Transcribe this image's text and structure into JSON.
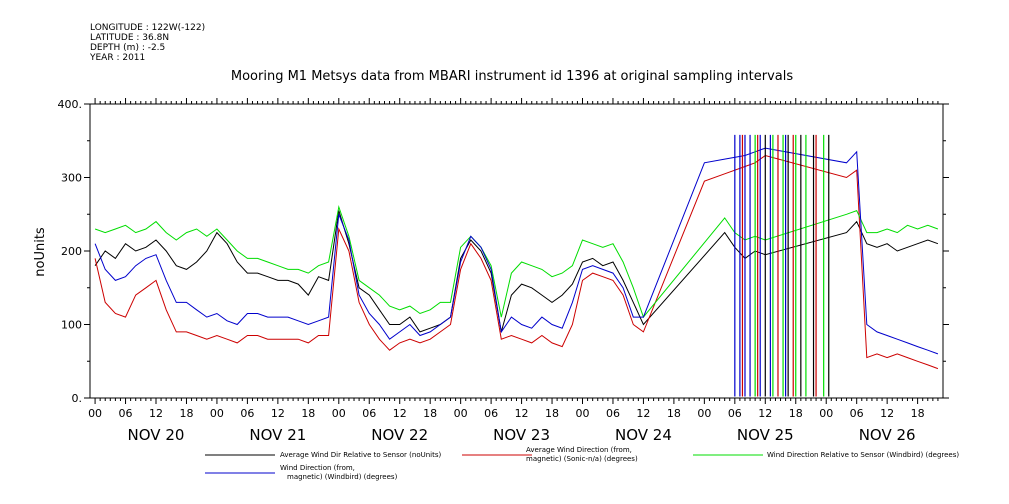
{
  "header": {
    "longitude": "LONGITUDE : 122W(-122)",
    "latitude": "LATITUDE : 36.8N",
    "depth": "DEPTH (m) : -2.5",
    "year": "YEAR : 2011"
  },
  "chart_data": {
    "type": "line",
    "title": "Mooring M1 Metsys data from MBARI instrument id 1396 at original sampling intervals",
    "ylabel": "noUnits",
    "xlabel": "",
    "ylim": [
      0,
      400
    ],
    "yticks": [
      0,
      100,
      200,
      300,
      400
    ],
    "ytick_labels": [
      "0.",
      "100",
      "200",
      "300",
      "400."
    ],
    "x_hour_labels": [
      "00",
      "06",
      "12",
      "18",
      "00",
      "06",
      "12",
      "18",
      "00",
      "06",
      "12",
      "18",
      "00",
      "06",
      "12",
      "18",
      "00",
      "06",
      "12",
      "18",
      "00",
      "06",
      "12",
      "18",
      "00",
      "06",
      "12",
      "18"
    ],
    "x_days": [
      "NOV 20",
      "NOV 21",
      "NOV 22",
      "NOV 23",
      "NOV 24",
      "NOV 25",
      "NOV 26"
    ],
    "x_range_hours": [
      -1,
      167
    ],
    "grid": false,
    "legend_position": "bottom",
    "series": [
      {
        "name": "Average Wind Dir Relative to Sensor (noUnits)",
        "color": "#000000",
        "points": [
          [
            0,
            180
          ],
          [
            2,
            200
          ],
          [
            4,
            190
          ],
          [
            6,
            210
          ],
          [
            8,
            200
          ],
          [
            10,
            205
          ],
          [
            12,
            215
          ],
          [
            14,
            200
          ],
          [
            16,
            180
          ],
          [
            18,
            175
          ],
          [
            20,
            185
          ],
          [
            22,
            200
          ],
          [
            24,
            225
          ],
          [
            26,
            210
          ],
          [
            28,
            185
          ],
          [
            30,
            170
          ],
          [
            32,
            170
          ],
          [
            34,
            165
          ],
          [
            36,
            160
          ],
          [
            38,
            160
          ],
          [
            40,
            155
          ],
          [
            42,
            140
          ],
          [
            44,
            165
          ],
          [
            46,
            160
          ],
          [
            48,
            255
          ],
          [
            50,
            210
          ],
          [
            52,
            150
          ],
          [
            54,
            140
          ],
          [
            56,
            120
          ],
          [
            58,
            100
          ],
          [
            60,
            100
          ],
          [
            62,
            110
          ],
          [
            64,
            90
          ],
          [
            66,
            95
          ],
          [
            68,
            100
          ],
          [
            70,
            110
          ],
          [
            72,
            190
          ],
          [
            74,
            215
          ],
          [
            76,
            200
          ],
          [
            78,
            170
          ],
          [
            80,
            90
          ],
          [
            82,
            140
          ],
          [
            84,
            155
          ],
          [
            86,
            150
          ],
          [
            88,
            140
          ],
          [
            90,
            130
          ],
          [
            92,
            140
          ],
          [
            94,
            155
          ],
          [
            96,
            185
          ],
          [
            98,
            190
          ],
          [
            100,
            180
          ],
          [
            102,
            185
          ],
          [
            104,
            160
          ],
          [
            106,
            130
          ],
          [
            108,
            100
          ],
          [
            124,
            225
          ],
          [
            126,
            205
          ],
          [
            128,
            190
          ],
          [
            130,
            200
          ],
          [
            132,
            195
          ],
          [
            148,
            225
          ],
          [
            150,
            240
          ],
          [
            152,
            210
          ],
          [
            154,
            205
          ],
          [
            156,
            210
          ],
          [
            158,
            200
          ],
          [
            160,
            205
          ],
          [
            162,
            210
          ],
          [
            164,
            215
          ],
          [
            166,
            210
          ]
        ]
      },
      {
        "name": "Average Wind Direction (from, magnetic) (Sonic-n/a) (degrees)",
        "color": "#cc0000",
        "points": [
          [
            0,
            190
          ],
          [
            2,
            130
          ],
          [
            4,
            115
          ],
          [
            6,
            110
          ],
          [
            8,
            140
          ],
          [
            10,
            150
          ],
          [
            12,
            160
          ],
          [
            14,
            120
          ],
          [
            16,
            90
          ],
          [
            18,
            90
          ],
          [
            20,
            85
          ],
          [
            22,
            80
          ],
          [
            24,
            85
          ],
          [
            26,
            80
          ],
          [
            28,
            75
          ],
          [
            30,
            85
          ],
          [
            32,
            85
          ],
          [
            34,
            80
          ],
          [
            36,
            80
          ],
          [
            38,
            80
          ],
          [
            40,
            80
          ],
          [
            42,
            75
          ],
          [
            44,
            85
          ],
          [
            46,
            85
          ],
          [
            48,
            230
          ],
          [
            50,
            200
          ],
          [
            52,
            130
          ],
          [
            54,
            100
          ],
          [
            56,
            80
          ],
          [
            58,
            65
          ],
          [
            60,
            75
          ],
          [
            62,
            80
          ],
          [
            64,
            75
          ],
          [
            66,
            80
          ],
          [
            68,
            90
          ],
          [
            70,
            100
          ],
          [
            72,
            175
          ],
          [
            74,
            210
          ],
          [
            76,
            190
          ],
          [
            78,
            160
          ],
          [
            80,
            80
          ],
          [
            82,
            85
          ],
          [
            84,
            80
          ],
          [
            86,
            75
          ],
          [
            88,
            85
          ],
          [
            90,
            75
          ],
          [
            92,
            70
          ],
          [
            94,
            100
          ],
          [
            96,
            160
          ],
          [
            98,
            170
          ],
          [
            100,
            165
          ],
          [
            102,
            160
          ],
          [
            104,
            140
          ],
          [
            106,
            100
          ],
          [
            108,
            90
          ],
          [
            120,
            295
          ],
          [
            124,
            305
          ],
          [
            128,
            315
          ],
          [
            130,
            320
          ],
          [
            132,
            330
          ],
          [
            148,
            300
          ],
          [
            150,
            310
          ],
          [
            152,
            55
          ],
          [
            154,
            60
          ],
          [
            156,
            55
          ],
          [
            158,
            60
          ],
          [
            160,
            55
          ],
          [
            162,
            50
          ],
          [
            164,
            45
          ],
          [
            166,
            40
          ]
        ]
      },
      {
        "name": "Wind Direction Relative to Sensor (Windbird) (degrees)",
        "color": "#00dd00",
        "points": [
          [
            0,
            230
          ],
          [
            2,
            225
          ],
          [
            4,
            230
          ],
          [
            6,
            235
          ],
          [
            8,
            225
          ],
          [
            10,
            230
          ],
          [
            12,
            240
          ],
          [
            14,
            225
          ],
          [
            16,
            215
          ],
          [
            18,
            225
          ],
          [
            20,
            230
          ],
          [
            22,
            220
          ],
          [
            24,
            230
          ],
          [
            26,
            215
          ],
          [
            28,
            200
          ],
          [
            30,
            190
          ],
          [
            32,
            190
          ],
          [
            34,
            185
          ],
          [
            36,
            180
          ],
          [
            38,
            175
          ],
          [
            40,
            175
          ],
          [
            42,
            170
          ],
          [
            44,
            180
          ],
          [
            46,
            185
          ],
          [
            48,
            260
          ],
          [
            50,
            220
          ],
          [
            52,
            160
          ],
          [
            54,
            150
          ],
          [
            56,
            140
          ],
          [
            58,
            125
          ],
          [
            60,
            120
          ],
          [
            62,
            125
          ],
          [
            64,
            115
          ],
          [
            66,
            120
          ],
          [
            68,
            130
          ],
          [
            70,
            130
          ],
          [
            72,
            205
          ],
          [
            74,
            220
          ],
          [
            76,
            205
          ],
          [
            78,
            180
          ],
          [
            80,
            110
          ],
          [
            82,
            170
          ],
          [
            84,
            185
          ],
          [
            86,
            180
          ],
          [
            88,
            175
          ],
          [
            90,
            165
          ],
          [
            92,
            170
          ],
          [
            94,
            180
          ],
          [
            96,
            215
          ],
          [
            98,
            210
          ],
          [
            100,
            205
          ],
          [
            102,
            210
          ],
          [
            104,
            185
          ],
          [
            106,
            150
          ],
          [
            108,
            110
          ],
          [
            124,
            245
          ],
          [
            126,
            225
          ],
          [
            128,
            215
          ],
          [
            130,
            220
          ],
          [
            132,
            215
          ],
          [
            148,
            250
          ],
          [
            150,
            255
          ],
          [
            152,
            225
          ],
          [
            154,
            225
          ],
          [
            156,
            230
          ],
          [
            158,
            225
          ],
          [
            160,
            235
          ],
          [
            162,
            230
          ],
          [
            164,
            235
          ],
          [
            166,
            230
          ]
        ]
      },
      {
        "name": "Wind Direction (from, magnetic) (Windbird) (degrees)",
        "color": "#0000cc",
        "points": [
          [
            0,
            210
          ],
          [
            2,
            175
          ],
          [
            4,
            160
          ],
          [
            6,
            165
          ],
          [
            8,
            180
          ],
          [
            10,
            190
          ],
          [
            12,
            195
          ],
          [
            14,
            160
          ],
          [
            16,
            130
          ],
          [
            18,
            130
          ],
          [
            20,
            120
          ],
          [
            22,
            110
          ],
          [
            24,
            115
          ],
          [
            26,
            105
          ],
          [
            28,
            100
          ],
          [
            30,
            115
          ],
          [
            32,
            115
          ],
          [
            34,
            110
          ],
          [
            36,
            110
          ],
          [
            38,
            110
          ],
          [
            40,
            105
          ],
          [
            42,
            100
          ],
          [
            44,
            105
          ],
          [
            46,
            110
          ],
          [
            48,
            250
          ],
          [
            50,
            215
          ],
          [
            52,
            140
          ],
          [
            54,
            115
          ],
          [
            56,
            100
          ],
          [
            58,
            80
          ],
          [
            60,
            90
          ],
          [
            62,
            100
          ],
          [
            64,
            85
          ],
          [
            66,
            90
          ],
          [
            68,
            100
          ],
          [
            70,
            110
          ],
          [
            72,
            185
          ],
          [
            74,
            220
          ],
          [
            76,
            205
          ],
          [
            78,
            175
          ],
          [
            80,
            90
          ],
          [
            82,
            110
          ],
          [
            84,
            100
          ],
          [
            86,
            95
          ],
          [
            88,
            110
          ],
          [
            90,
            100
          ],
          [
            92,
            95
          ],
          [
            94,
            130
          ],
          [
            96,
            175
          ],
          [
            98,
            180
          ],
          [
            100,
            175
          ],
          [
            102,
            170
          ],
          [
            104,
            150
          ],
          [
            106,
            110
          ],
          [
            108,
            110
          ],
          [
            120,
            320
          ],
          [
            124,
            325
          ],
          [
            128,
            330
          ],
          [
            130,
            335
          ],
          [
            132,
            340
          ],
          [
            148,
            320
          ],
          [
            150,
            335
          ],
          [
            152,
            100
          ],
          [
            154,
            90
          ],
          [
            156,
            85
          ],
          [
            158,
            80
          ],
          [
            160,
            75
          ],
          [
            162,
            70
          ],
          [
            164,
            65
          ],
          [
            166,
            60
          ]
        ]
      }
    ],
    "spikes": [
      {
        "color": "#0000cc",
        "hours": [
          126,
          127,
          128,
          129,
          131,
          133,
          136
        ]
      },
      {
        "color": "#cc0000",
        "hours": [
          127.5,
          130.5,
          134.5,
          137.5,
          142
        ]
      },
      {
        "color": "#000000",
        "hours": [
          132,
          136.5,
          139,
          141.5,
          144.5
        ]
      },
      {
        "color": "#00dd00",
        "hours": [
          130,
          133.5,
          135.5,
          138,
          140,
          143.5
        ]
      }
    ]
  }
}
